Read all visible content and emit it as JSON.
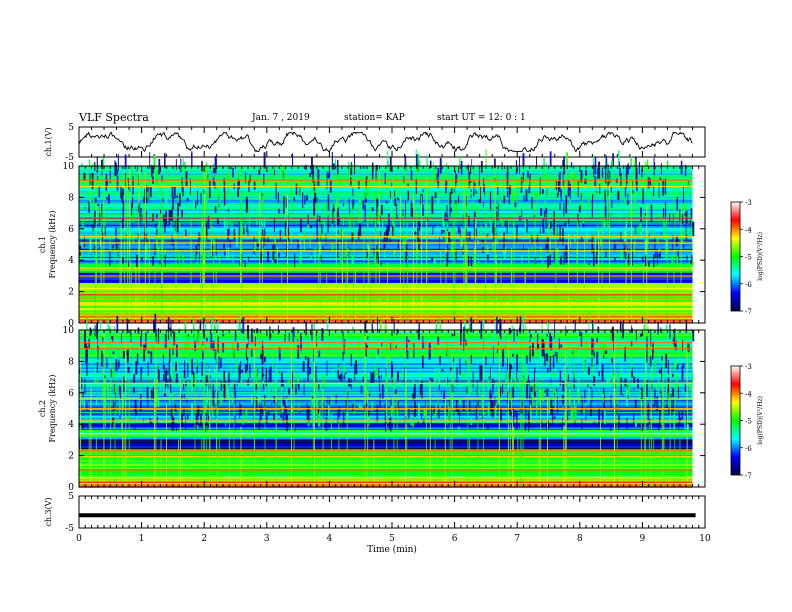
{
  "header": {
    "title": "VLF Spectra",
    "date": "Jan. 7 , 2019",
    "station": "station= KAP",
    "start": "start  UT =  12: 0  : 1"
  },
  "colorbar": {
    "label": "log(PSD)(V²/Hz)",
    "ticks": [
      "-3",
      "-4",
      "-5",
      "-6",
      "-7"
    ],
    "stops": [
      "#ffffff",
      "#ff0000",
      "#ffff00",
      "#00ff00",
      "#00ffff",
      "#0000ff",
      "#000040"
    ]
  },
  "chart_data": [
    {
      "type": "line",
      "ylabel": "ch.1(V)",
      "ylim": [
        -5,
        5
      ],
      "yticks": [
        "5",
        "-5"
      ],
      "xlim": [
        0,
        10
      ],
      "series": [
        {
          "values": "noisy waveform oscillating between about -2 and 2 V over 0 to 9.8 min"
        }
      ]
    },
    {
      "type": "heatmap",
      "ylabel": "ch.1 Frequency (kHz)",
      "ylim": [
        0,
        10
      ],
      "yticks": [
        "10",
        "8",
        "6",
        "4",
        "2",
        "0"
      ],
      "xlim": [
        0,
        9.8
      ],
      "bands": [
        {
          "f": [
            0.0,
            0.6
          ],
          "level": 0.78
        },
        {
          "f": [
            0.6,
            1.6
          ],
          "level": 0.6
        },
        {
          "f": [
            1.6,
            2.6
          ],
          "level": 0.62
        },
        {
          "f": [
            2.6,
            3.3
          ],
          "level": 0.1
        },
        {
          "f": [
            3.3,
            3.8
          ],
          "level": 0.45
        },
        {
          "f": [
            3.8,
            4.3
          ],
          "level": 0.2
        },
        {
          "f": [
            4.3,
            6.5
          ],
          "level": 0.22
        },
        {
          "f": [
            6.5,
            8.5
          ],
          "level": 0.32
        },
        {
          "f": [
            8.5,
            10.0
          ],
          "level": 0.4
        }
      ],
      "lines_khz": [
        0.2,
        0.5,
        0.9,
        1.2,
        1.8,
        2.2,
        2.5,
        3.0,
        3.5,
        4.6,
        5.1,
        5.5,
        6.7,
        8.7,
        9.1
      ]
    },
    {
      "type": "heatmap",
      "ylabel": "ch.2 Frequency (kHz)",
      "ylim": [
        0,
        10
      ],
      "yticks": [
        "10",
        "8",
        "6",
        "4",
        "2",
        "0"
      ],
      "xlim": [
        0,
        9.8
      ],
      "bands": [
        {
          "f": [
            0.0,
            0.6
          ],
          "level": 0.72
        },
        {
          "f": [
            0.6,
            1.6
          ],
          "level": 0.5
        },
        {
          "f": [
            1.6,
            2.5
          ],
          "level": 0.55
        },
        {
          "f": [
            2.5,
            3.2
          ],
          "level": 0.12
        },
        {
          "f": [
            3.2,
            3.7
          ],
          "level": 0.45
        },
        {
          "f": [
            3.7,
            4.1
          ],
          "level": 0.12
        },
        {
          "f": [
            4.1,
            6.3
          ],
          "level": 0.25
        },
        {
          "f": [
            6.3,
            8.3
          ],
          "level": 0.33
        },
        {
          "f": [
            8.3,
            10.0
          ],
          "level": 0.45
        }
      ],
      "lines_khz": [
        0.3,
        0.6,
        1.1,
        1.4,
        2.0,
        2.3,
        3.4,
        4.2,
        5.0,
        5.6,
        6.6,
        8.8,
        9.2
      ]
    },
    {
      "type": "line",
      "ylabel": "ch.3(V)",
      "ylim": [
        -5,
        5
      ],
      "yticks": [
        "5",
        "-5"
      ],
      "xlabel": "Time  (min)",
      "xlim": [
        0,
        10
      ],
      "xticks": [
        "0",
        "1",
        "2",
        "3",
        "4",
        "5",
        "6",
        "7",
        "8",
        "9",
        "10"
      ],
      "series": [
        {
          "x": [
            0,
            9.85
          ],
          "y": [
            -1,
            -1
          ]
        }
      ]
    }
  ]
}
